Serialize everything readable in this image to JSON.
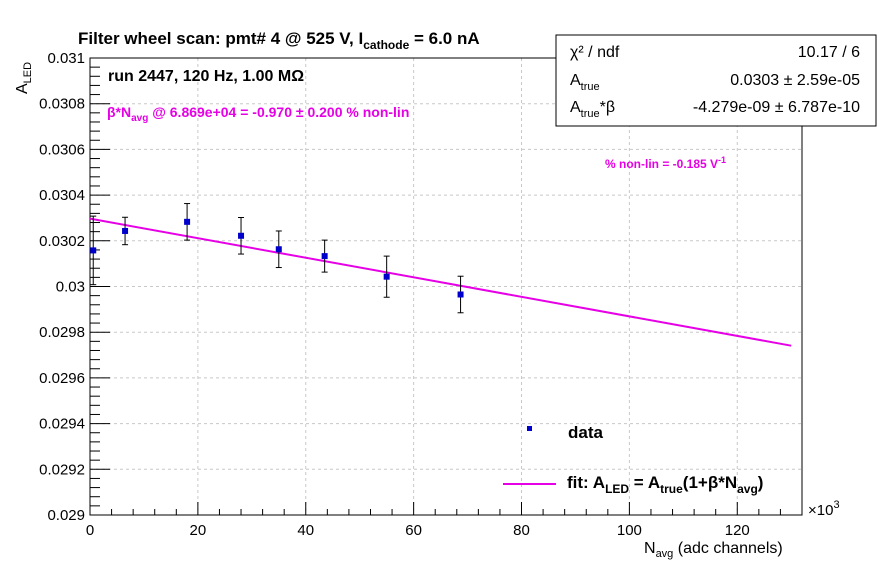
{
  "chart_data": {
    "type": "scatter",
    "title": "Filter wheel scan: pmt#   4 @   525 V, I",
    "title_sub": "cathode",
    "title_tail": " = 6.0 nA",
    "run_label": "run 2447, 120 Hz, 1.00 MΩ",
    "beta_prefix": "β*N",
    "beta_sub": "avg",
    "beta_text": " @ 6.869e+04 = -0.970 ± 0.200 % non-lin",
    "nonlin_text": "% non-lin = -0.185 V",
    "nonlin_sup": "-1",
    "ylabel_main": "A",
    "ylabel_sub": "LED",
    "xlabel_main": "N",
    "xlabel_sub": "avg",
    "xlabel_tail": " (adc channels)",
    "x_exponent_prefix": "×10",
    "x_exponent": "3",
    "xlim": [
      0,
      132000
    ],
    "ylim": [
      0.029,
      0.031
    ],
    "x_ticks": [
      0,
      20000,
      40000,
      60000,
      80000,
      100000,
      120000
    ],
    "x_tick_labels": [
      "0",
      "20",
      "40",
      "60",
      "80",
      "100",
      "120"
    ],
    "y_ticks": [
      0.029,
      0.0292,
      0.0294,
      0.0296,
      0.0298,
      0.03,
      0.0302,
      0.0304,
      0.0306,
      0.0308,
      0.031
    ],
    "y_tick_labels": [
      "0.029",
      "0.0292",
      "0.0294",
      "0.0296",
      "0.0298",
      "0.03",
      "0.0302",
      "0.0304",
      "0.0306",
      "0.0308",
      "0.031"
    ],
    "grid": true,
    "colors": {
      "data": "#0000cc",
      "fit": "#e600e6",
      "text": "#000000",
      "grid": "#c8c8c8"
    },
    "series": [
      {
        "name": "data",
        "points": [
          {
            "x": 600,
            "y": 0.030158,
            "err": 0.00015
          },
          {
            "x": 6500,
            "y": 0.030243,
            "err": 6e-05
          },
          {
            "x": 18000,
            "y": 0.030283,
            "err": 8e-05
          },
          {
            "x": 28000,
            "y": 0.030222,
            "err": 8e-05
          },
          {
            "x": 35000,
            "y": 0.030163,
            "err": 8e-05
          },
          {
            "x": 43500,
            "y": 0.030133,
            "err": 7e-05
          },
          {
            "x": 55000,
            "y": 0.030043,
            "err": 9e-05
          },
          {
            "x": 68700,
            "y": 0.029965,
            "err": 8e-05
          }
        ]
      }
    ],
    "fit": {
      "name": "fit",
      "x": [
        0,
        130000
      ],
      "y": [
        0.030297,
        0.029741
      ]
    },
    "legend": {
      "position": "bottom-right",
      "data_label": "data",
      "fit_prefix": "fit: A",
      "fit_sub1": "LED",
      "fit_mid1": " = A",
      "fit_sub2": "true",
      "fit_mid2": "(1+β*N",
      "fit_sub3": "avg",
      "fit_tail": ")"
    },
    "stats": {
      "position": "top-right",
      "rows": [
        {
          "label": "χ² / ndf",
          "label_sub": "",
          "label_tail": "",
          "value": "10.17 / 6"
        },
        {
          "label": "A",
          "label_sub": "true",
          "label_tail": "",
          "value": "0.0303 ± 2.59e-05"
        },
        {
          "label": "A",
          "label_sub": "true",
          "label_tail": "*β",
          "value": "-4.279e-09 ± 6.787e-10"
        }
      ]
    }
  }
}
